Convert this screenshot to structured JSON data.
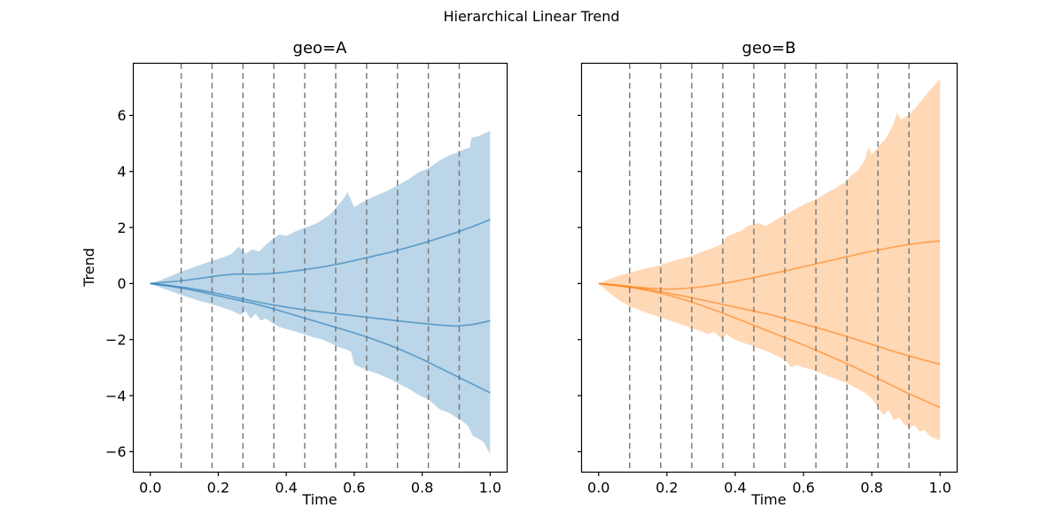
{
  "figure": {
    "title": "Hierarchical Linear Trend",
    "background": "#ffffff",
    "text_color": "#000000",
    "spine_color": "#000000"
  },
  "chart_data": [
    {
      "type": "area",
      "title": "geo=A",
      "xlabel": "Time",
      "ylabel": "Trend",
      "color": "#1f77b4",
      "fill_alpha": 0.3,
      "line_alpha": 0.6,
      "grid": false,
      "legend": "none",
      "xlim": [
        -0.05,
        1.05
      ],
      "ylim": [
        -6.73,
        7.86
      ],
      "xticks": {
        "values": [
          0,
          0.2,
          0.4,
          0.6,
          0.8,
          1.0
        ],
        "labels": [
          "0.0",
          "0.2",
          "0.4",
          "0.6",
          "0.8",
          "1.0"
        ]
      },
      "yticks": {
        "values": [
          -6,
          -4,
          -2,
          0,
          2,
          4,
          6
        ],
        "labels": [
          "−6",
          "−4",
          "−2",
          "0",
          "2",
          "4",
          "6"
        ],
        "show_labels": true
      },
      "changepoints": [
        0.0909,
        0.1818,
        0.2727,
        0.3636,
        0.4545,
        0.5455,
        0.6364,
        0.7273,
        0.8182,
        0.9091
      ],
      "changepoint_style": {
        "color": "#7c7c7c",
        "dash": [
          6.5,
          4.5
        ]
      },
      "band": {
        "hi": {
          "x": [
            0,
            0.03,
            0.06,
            0.09,
            0.12,
            0.15,
            0.18,
            0.21,
            0.24,
            0.26,
            0.28,
            0.3,
            0.32,
            0.34,
            0.36,
            0.38,
            0.4,
            0.43,
            0.45,
            0.48,
            0.5,
            0.53,
            0.55,
            0.57,
            0.58,
            0.6,
            0.62,
            0.64,
            0.67,
            0.7,
            0.73,
            0.76,
            0.79,
            0.82,
            0.85,
            0.88,
            0.905,
            0.925,
            0.94,
            0.945,
            0.97,
            1.0
          ],
          "y": [
            0,
            0.12,
            0.27,
            0.42,
            0.55,
            0.68,
            0.8,
            0.92,
            1.06,
            1.32,
            1.06,
            1.22,
            1.15,
            1.38,
            1.6,
            1.75,
            1.7,
            1.88,
            1.97,
            2.1,
            2.22,
            2.48,
            2.75,
            3.05,
            3.27,
            2.72,
            2.88,
            3.0,
            3.17,
            3.32,
            3.52,
            3.72,
            3.97,
            4.12,
            4.38,
            4.58,
            4.68,
            4.8,
            4.85,
            5.2,
            5.28,
            5.45
          ]
        },
        "lo": {
          "x": [
            0,
            0.03,
            0.06,
            0.09,
            0.12,
            0.15,
            0.18,
            0.21,
            0.24,
            0.265,
            0.28,
            0.295,
            0.31,
            0.325,
            0.34,
            0.36,
            0.38,
            0.4,
            0.43,
            0.45,
            0.48,
            0.5,
            0.53,
            0.55,
            0.575,
            0.59,
            0.6,
            0.62,
            0.64,
            0.67,
            0.7,
            0.73,
            0.76,
            0.79,
            0.82,
            0.85,
            0.88,
            0.9,
            0.92,
            0.935,
            0.95,
            0.96,
            0.98,
            1.0
          ],
          "y": [
            0,
            -0.14,
            -0.27,
            -0.41,
            -0.52,
            -0.64,
            -0.73,
            -0.85,
            -0.97,
            -1.12,
            -0.98,
            -1.25,
            -1.08,
            -1.32,
            -1.25,
            -1.42,
            -1.55,
            -1.62,
            -1.72,
            -1.8,
            -1.92,
            -1.97,
            -2.12,
            -2.25,
            -2.35,
            -2.42,
            -2.88,
            -3.0,
            -3.1,
            -3.22,
            -3.38,
            -3.57,
            -3.75,
            -3.98,
            -4.15,
            -4.48,
            -4.62,
            -4.78,
            -4.92,
            -5.08,
            -5.45,
            -5.5,
            -5.65,
            -6.08
          ]
        }
      },
      "lines": {
        "x": [
          0,
          0.05,
          0.1,
          0.15,
          0.2,
          0.25,
          0.3,
          0.35,
          0.4,
          0.45,
          0.5,
          0.55,
          0.6,
          0.65,
          0.7,
          0.75,
          0.8,
          0.85,
          0.9,
          0.95,
          1.0
        ],
        "series": [
          {
            "name": "trend-sample-1",
            "y": [
              0,
              0.05,
              0.11,
              0.19,
              0.28,
              0.34,
              0.33,
              0.35,
              0.41,
              0.49,
              0.58,
              0.69,
              0.82,
              0.96,
              1.1,
              1.26,
              1.43,
              1.62,
              1.82,
              2.04,
              2.28
            ]
          },
          {
            "name": "trend-sample-2",
            "y": [
              0,
              -0.06,
              -0.14,
              -0.24,
              -0.36,
              -0.49,
              -0.62,
              -0.74,
              -0.84,
              -0.93,
              -1.01,
              -1.08,
              -1.15,
              -1.22,
              -1.29,
              -1.36,
              -1.42,
              -1.48,
              -1.52,
              -1.46,
              -1.33
            ]
          },
          {
            "name": "trend-sample-3",
            "y": [
              0,
              -0.08,
              -0.18,
              -0.3,
              -0.44,
              -0.57,
              -0.7,
              -0.86,
              -1.04,
              -1.22,
              -1.4,
              -1.58,
              -1.76,
              -1.96,
              -2.18,
              -2.43,
              -2.7,
              -3.0,
              -3.3,
              -3.6,
              -3.9
            ]
          }
        ]
      }
    },
    {
      "type": "area",
      "title": "geo=B",
      "xlabel": "Time",
      "color": "#ff7f0e",
      "fill_alpha": 0.3,
      "line_alpha": 0.6,
      "grid": false,
      "legend": "none",
      "xlim": [
        -0.05,
        1.05
      ],
      "ylim": [
        -6.73,
        7.86
      ],
      "xticks": {
        "values": [
          0,
          0.2,
          0.4,
          0.6,
          0.8,
          1.0
        ],
        "labels": [
          "0.0",
          "0.2",
          "0.4",
          "0.6",
          "0.8",
          "1.0"
        ]
      },
      "yticks": {
        "values": [
          -6,
          -4,
          -2,
          0,
          2,
          4,
          6
        ],
        "labels": [
          "−6",
          "−4",
          "−2",
          "0",
          "2",
          "4",
          "6"
        ],
        "show_labels": false
      },
      "changepoints": [
        0.0909,
        0.1818,
        0.2727,
        0.3636,
        0.4545,
        0.5455,
        0.6364,
        0.7273,
        0.8182,
        0.9091
      ],
      "changepoint_style": {
        "color": "#7c7c7c",
        "dash": [
          6.5,
          4.5
        ]
      },
      "band": {
        "hi": {
          "x": [
            0,
            0.03,
            0.06,
            0.09,
            0.12,
            0.15,
            0.18,
            0.21,
            0.24,
            0.27,
            0.3,
            0.33,
            0.36,
            0.375,
            0.39,
            0.42,
            0.44,
            0.47,
            0.49,
            0.52,
            0.55,
            0.58,
            0.61,
            0.64,
            0.67,
            0.7,
            0.72,
            0.74,
            0.76,
            0.78,
            0.79,
            0.8,
            0.82,
            0.84,
            0.86,
            0.875,
            0.885,
            0.91,
            0.93,
            0.95,
            0.97,
            1.0
          ],
          "y": [
            0,
            0.15,
            0.28,
            0.38,
            0.48,
            0.57,
            0.65,
            0.78,
            0.88,
            0.98,
            1.12,
            1.25,
            1.4,
            1.68,
            1.75,
            1.9,
            2.08,
            2.15,
            2.05,
            2.28,
            2.48,
            2.68,
            2.88,
            3.02,
            3.25,
            3.45,
            3.6,
            3.85,
            4.05,
            4.4,
            4.88,
            4.6,
            4.9,
            5.15,
            5.6,
            6.1,
            5.85,
            6.02,
            6.3,
            6.6,
            6.9,
            7.3
          ]
        },
        "lo": {
          "x": [
            0,
            0.03,
            0.06,
            0.09,
            0.12,
            0.15,
            0.18,
            0.21,
            0.24,
            0.27,
            0.3,
            0.32,
            0.34,
            0.36,
            0.375,
            0.39,
            0.42,
            0.45,
            0.48,
            0.5,
            0.53,
            0.55,
            0.565,
            0.58,
            0.6,
            0.62,
            0.64,
            0.67,
            0.7,
            0.73,
            0.76,
            0.78,
            0.8,
            0.82,
            0.835,
            0.85,
            0.865,
            0.88,
            0.895,
            0.91,
            0.925,
            0.94,
            0.955,
            0.97,
            1.0
          ],
          "y": [
            0,
            -0.32,
            -0.6,
            -0.8,
            -0.95,
            -1.08,
            -1.2,
            -1.33,
            -1.45,
            -1.58,
            -1.7,
            -1.8,
            -1.73,
            -1.98,
            -1.8,
            -1.95,
            -2.1,
            -2.22,
            -2.36,
            -2.46,
            -2.62,
            -2.78,
            -3.0,
            -2.9,
            -3.0,
            -3.06,
            -3.15,
            -3.3,
            -3.42,
            -3.57,
            -3.76,
            -3.9,
            -4.1,
            -4.45,
            -4.7,
            -4.52,
            -4.88,
            -4.78,
            -5.02,
            -5.15,
            -5.05,
            -5.28,
            -5.22,
            -5.45,
            -5.6
          ]
        }
      },
      "lines": {
        "x": [
          0,
          0.05,
          0.1,
          0.15,
          0.2,
          0.25,
          0.3,
          0.35,
          0.4,
          0.45,
          0.5,
          0.55,
          0.6,
          0.65,
          0.7,
          0.75,
          0.8,
          0.85,
          0.9,
          0.95,
          1.0
        ],
        "series": [
          {
            "name": "trend-sample-1",
            "y": [
              0,
              -0.05,
              -0.12,
              -0.17,
              -0.2,
              -0.18,
              -0.12,
              -0.03,
              0.08,
              0.2,
              0.33,
              0.46,
              0.6,
              0.74,
              0.88,
              1.02,
              1.15,
              1.27,
              1.38,
              1.46,
              1.52
            ]
          },
          {
            "name": "trend-sample-2",
            "y": [
              0,
              -0.06,
              -0.13,
              -0.22,
              -0.33,
              -0.45,
              -0.58,
              -0.71,
              -0.84,
              -0.97,
              -1.1,
              -1.27,
              -1.44,
              -1.61,
              -1.79,
              -1.98,
              -2.17,
              -2.37,
              -2.55,
              -2.72,
              -2.88
            ]
          },
          {
            "name": "trend-sample-3",
            "y": [
              0,
              -0.07,
              -0.15,
              -0.26,
              -0.4,
              -0.57,
              -0.77,
              -0.99,
              -1.23,
              -1.47,
              -1.71,
              -1.95,
              -2.19,
              -2.45,
              -2.71,
              -2.99,
              -3.28,
              -3.58,
              -3.88,
              -4.15,
              -4.42
            ]
          }
        ]
      }
    }
  ]
}
